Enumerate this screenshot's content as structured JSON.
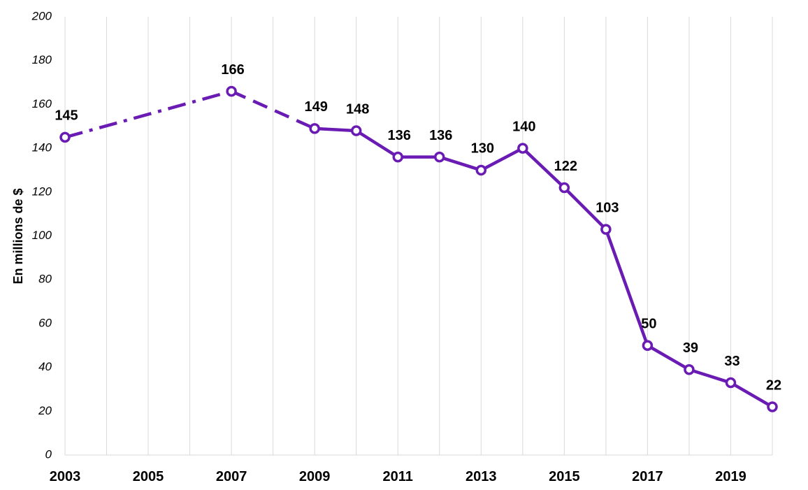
{
  "chart_data": {
    "type": "line",
    "ylabel": "En millions de $",
    "xlabel": "",
    "ylim": [
      0,
      200
    ],
    "xlim": [
      2003,
      2020
    ],
    "yticks": [
      0,
      20,
      40,
      60,
      80,
      100,
      120,
      140,
      160,
      180,
      200
    ],
    "xticks": [
      2003,
      2005,
      2007,
      2009,
      2011,
      2013,
      2015,
      2017,
      2019
    ],
    "grid": "vertical",
    "legend": "none",
    "color": "#6a1bb4",
    "x": [
      2003,
      2007,
      2009,
      2010,
      2011,
      2012,
      2013,
      2014,
      2015,
      2016,
      2017,
      2018,
      2019,
      2020
    ],
    "values": [
      145,
      166,
      149,
      148,
      136,
      136,
      130,
      140,
      122,
      103,
      50,
      39,
      33,
      22
    ],
    "labels": [
      "145",
      "166",
      "149",
      "148",
      "136",
      "136",
      "130",
      "140",
      "122",
      "103",
      "50",
      "39",
      "33",
      "22"
    ],
    "segment_styles": [
      "dash-dot",
      "dashed",
      "solid",
      "solid",
      "solid",
      "solid",
      "solid",
      "solid",
      "solid",
      "solid",
      "solid",
      "solid",
      "solid"
    ]
  }
}
